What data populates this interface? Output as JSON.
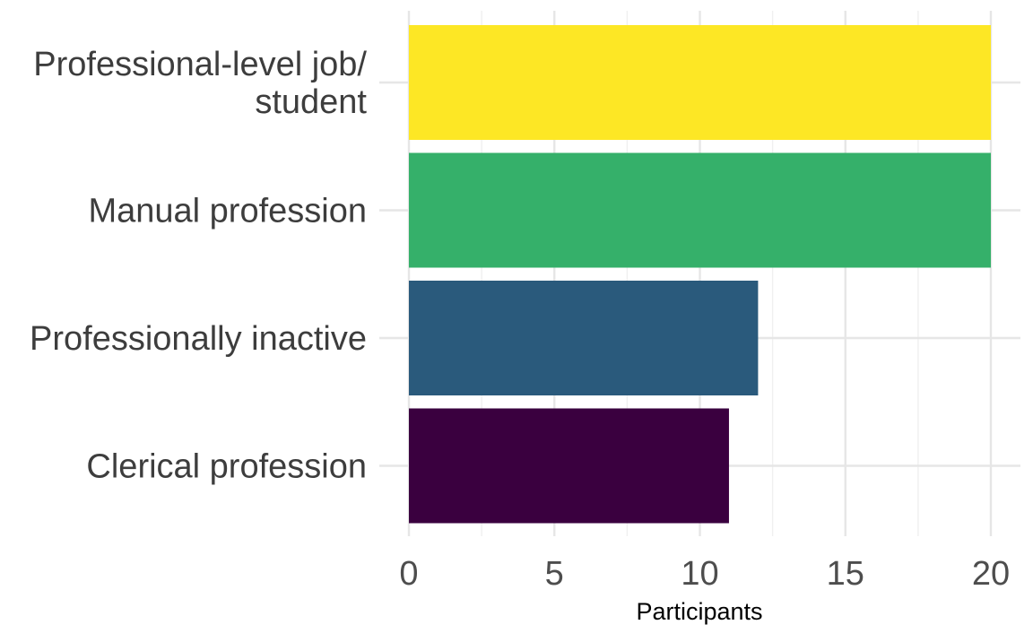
{
  "chart_data": {
    "type": "bar",
    "orientation": "horizontal",
    "title": "",
    "xlabel": "Participants",
    "ylabel": "",
    "xlim": [
      0,
      21
    ],
    "x_ticks": [
      0,
      5,
      10,
      15,
      20
    ],
    "grid": true,
    "legend": "none",
    "categories": [
      "Professional-level job/ student",
      "Manual profession",
      "Professionally inactive",
      "Clerical profession"
    ],
    "category_lines": [
      [
        "Professional-level job/",
        "student"
      ],
      [
        "Manual profession"
      ],
      [
        "Professionally inactive"
      ],
      [
        "Clerical profession"
      ]
    ],
    "values": [
      20,
      20,
      12,
      11
    ],
    "colors": [
      "#FDE725",
      "#35B06A",
      "#2A5A7C",
      "#3A003F"
    ]
  }
}
